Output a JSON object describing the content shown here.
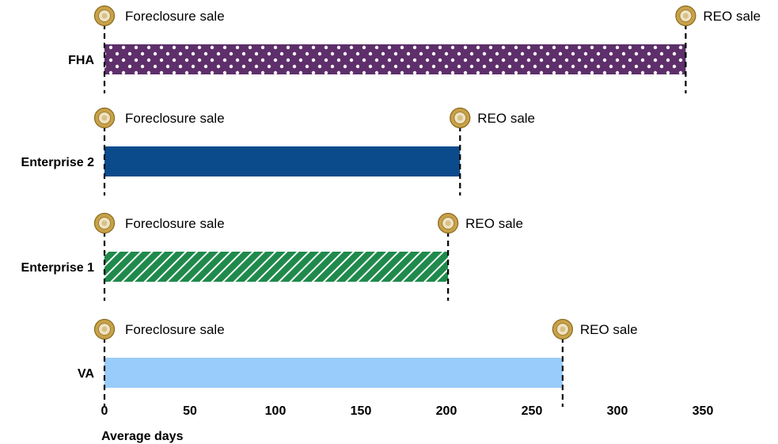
{
  "chart_data": {
    "type": "bar",
    "orientation": "horizontal",
    "xlabel": "Average days",
    "xlim": [
      0,
      350
    ],
    "xticks": [
      0,
      50,
      100,
      150,
      200,
      250,
      300,
      350
    ],
    "grid": false,
    "categories": [
      "FHA",
      "Enterprise 2",
      "Enterprise 1",
      "VA"
    ],
    "bars": [
      {
        "category": "FHA",
        "start": 0,
        "end": 340,
        "start_label": "Foreclosure sale",
        "end_label": "REO sale",
        "color": "#5e2f6b",
        "pattern": "dots"
      },
      {
        "category": "Enterprise 2",
        "start": 0,
        "end": 208,
        "start_label": "Foreclosure sale",
        "end_label": "REO sale",
        "color": "#0b4b8c",
        "pattern": "solid"
      },
      {
        "category": "Enterprise 1",
        "start": 0,
        "end": 201,
        "start_label": "Foreclosure sale",
        "end_label": "REO sale",
        "color": "#1f8a4c",
        "pattern": "diagonal-stripes"
      },
      {
        "category": "VA",
        "start": 0,
        "end": 268,
        "start_label": "Foreclosure sale",
        "end_label": "REO sale",
        "color": "#99ccfa",
        "pattern": "solid"
      }
    ],
    "marker_icon": "gold-ring-marker-icon"
  }
}
